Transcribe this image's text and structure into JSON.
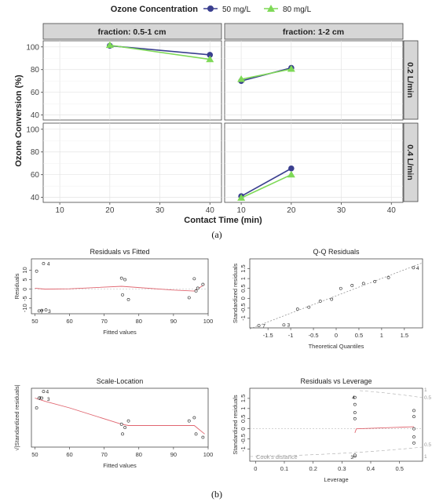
{
  "figure": {
    "label_a": "(a)",
    "label_b": "(b)"
  },
  "chart_data": [
    {
      "type": "line",
      "panel": "a",
      "legend": {
        "title": "Ozone Concentration",
        "placement": "top",
        "entries": [
          "50 mg/L",
          "80 mg/L"
        ]
      },
      "colors": {
        "50 mg/L": "#3a3f8f",
        "80 mg/L": "#7ed957",
        "strip": "#d6d6d6"
      },
      "xlabel": "Contact Time (min)",
      "ylabel": "Ozone Conversion (%)",
      "xlim": [
        7,
        42
      ],
      "ylim": [
        37,
        104
      ],
      "xticks": [
        10,
        20,
        30,
        40
      ],
      "yticks": [
        40,
        60,
        80,
        100
      ],
      "col_facets": [
        "fraction: 0.5-1 cm",
        "fraction: 1-2 cm"
      ],
      "row_facets": [
        "0.2 L/min",
        "0.4 L/min"
      ],
      "grid": true,
      "facets": [
        {
          "row": 0,
          "col": 0,
          "series": [
            {
              "name": "50 mg/L",
              "x": [
                20,
                40
              ],
              "y": [
                101,
                93
              ]
            },
            {
              "name": "80 mg/L",
              "x": [
                20,
                40
              ],
              "y": [
                101.5,
                89
              ]
            }
          ]
        },
        {
          "row": 0,
          "col": 1,
          "series": [
            {
              "name": "50 mg/L",
              "x": [
                10,
                20
              ],
              "y": [
                70,
                81.5
              ]
            },
            {
              "name": "80 mg/L",
              "x": [
                10,
                20
              ],
              "y": [
                71.5,
                80.5
              ]
            }
          ]
        },
        {
          "row": 1,
          "col": 0,
          "series": []
        },
        {
          "row": 1,
          "col": 1,
          "series": [
            {
              "name": "50 mg/L",
              "x": [
                10,
                20
              ],
              "y": [
                41,
                65.5
              ]
            },
            {
              "name": "80 mg/L",
              "x": [
                10,
                20
              ],
              "y": [
                39.5,
                60
              ]
            }
          ]
        }
      ]
    },
    {
      "type": "scatter",
      "panel": "b1",
      "title": "Residuals vs Fitted",
      "xlabel": "Fitted values",
      "ylabel": "Residuals",
      "xlim": [
        49,
        100
      ],
      "ylim": [
        -13,
        16
      ],
      "xticks": [
        50,
        60,
        70,
        80,
        90,
        100
      ],
      "yticks": [
        -10,
        -5,
        0,
        5,
        10
      ],
      "x": [
        50.5,
        51.2,
        52.0,
        52.5,
        53.2,
        75.0,
        75.3,
        76.0,
        77.0,
        94.5,
        96.0,
        96.5,
        97.0,
        98.5
      ],
      "y": [
        9.5,
        -11.5,
        -11.2,
        13.5,
        -11.0,
        5.8,
        -3.0,
        5.0,
        -5.5,
        -4.5,
        5.5,
        -1.0,
        0.5,
        2.5
      ],
      "labels": [
        {
          "text": "4",
          "x": 53.5,
          "y": 13.5
        },
        {
          "text": "7",
          "x": 51.6,
          "y": -11.8
        },
        {
          "text": "3",
          "x": 53.8,
          "y": -11.6
        }
      ],
      "smooth": {
        "x": [
          50,
          53,
          60,
          75,
          90,
          96,
          99
        ],
        "y": [
          0.5,
          0,
          0.2,
          1.5,
          -0.5,
          -1,
          2.5
        ]
      }
    },
    {
      "type": "scatter",
      "panel": "b2",
      "title": "Q-Q Residuals",
      "xlabel": "Theoretical Quantiles",
      "ylabel": "Standardized residuals",
      "xlim": [
        -1.9,
        1.9
      ],
      "ylim": [
        -1.5,
        2.0
      ],
      "xticks": [
        -1.5,
        -1.0,
        -0.5,
        0.0,
        0.5,
        1.0,
        1.5
      ],
      "yticks": [
        -1.0,
        -0.5,
        0.0,
        0.5,
        1.0,
        1.5
      ],
      "x": [
        -1.7,
        -1.15,
        -0.85,
        -0.6,
        -0.35,
        -0.1,
        0.1,
        0.35,
        0.6,
        0.85,
        1.15,
        1.7
      ],
      "y": [
        -1.38,
        -1.35,
        -0.55,
        -0.45,
        -0.15,
        -0.05,
        0.5,
        0.65,
        0.75,
        0.85,
        1.05,
        1.55
      ],
      "labels": [
        {
          "text": "7",
          "x": -1.62,
          "y": -1.38
        },
        {
          "text": "3",
          "x": -1.08,
          "y": -1.35
        },
        {
          "text": "4",
          "x": 1.76,
          "y": 1.55
        }
      ],
      "reference_line": {
        "x": [
          -1.9,
          1.9
        ],
        "y": [
          -1.55,
          1.8
        ]
      }
    },
    {
      "type": "scatter",
      "panel": "b3",
      "title": "Scale-Location",
      "xlabel": "Fitted values",
      "ylabel": "√|Standardized residuals|",
      "xlim": [
        49,
        100
      ],
      "ylim": [
        0.45,
        1.35
      ],
      "xticks": [
        50,
        60,
        70,
        80,
        90,
        100
      ],
      "yticks": [],
      "x": [
        50.5,
        51.2,
        52.0,
        52.5,
        75.0,
        75.3,
        76.0,
        77.0,
        94.5,
        96.0,
        96.5,
        98.5
      ],
      "y": [
        1.05,
        1.2,
        1.2,
        1.3,
        0.8,
        0.65,
        0.75,
        0.85,
        0.85,
        0.9,
        0.65,
        0.6
      ],
      "labels": [
        {
          "text": "4",
          "x": 53.2,
          "y": 1.3
        },
        {
          "text": "7",
          "x": 51.0,
          "y": 1.2
        },
        {
          "text": "3",
          "x": 53.5,
          "y": 1.19
        }
      ],
      "smooth": {
        "x": [
          50,
          53,
          60,
          75,
          77,
          90,
          96,
          99
        ],
        "y": [
          1.2,
          1.15,
          1.05,
          0.8,
          0.78,
          0.78,
          0.78,
          0.65
        ]
      }
    },
    {
      "type": "scatter",
      "panel": "b4",
      "title": "Residuals vs Leverage",
      "xlabel": "Leverage",
      "ylabel": "Standardized residuals",
      "xlim": [
        -0.02,
        0.58
      ],
      "ylim": [
        -1.6,
        2.0
      ],
      "xticks": [
        0.0,
        0.1,
        0.2,
        0.3,
        0.4,
        0.5
      ],
      "yticks": [
        -1.0,
        -0.5,
        0.0,
        0.5,
        1.0,
        1.5
      ],
      "x": [
        0.345,
        0.345,
        0.345,
        0.345,
        0.345,
        0.345,
        0.55,
        0.55,
        0.55,
        0.55,
        0.55
      ],
      "y": [
        1.55,
        1.2,
        0.8,
        0.5,
        -1.35,
        -1.3,
        0.9,
        0.6,
        0.0,
        -0.4,
        -0.7
      ],
      "labels": [
        {
          "text": "4",
          "x": 0.335,
          "y": 1.55
        },
        {
          "text": "3",
          "x": 0.33,
          "y": -1.38
        }
      ],
      "cooks_label": "Cook's distance",
      "cooks_levels": [
        "1",
        "0.5",
        "0.5",
        "1"
      ],
      "smooth": {
        "x": [
          0.345,
          0.35,
          0.55
        ],
        "y": [
          -0.2,
          0.0,
          0.1
        ]
      }
    }
  ]
}
